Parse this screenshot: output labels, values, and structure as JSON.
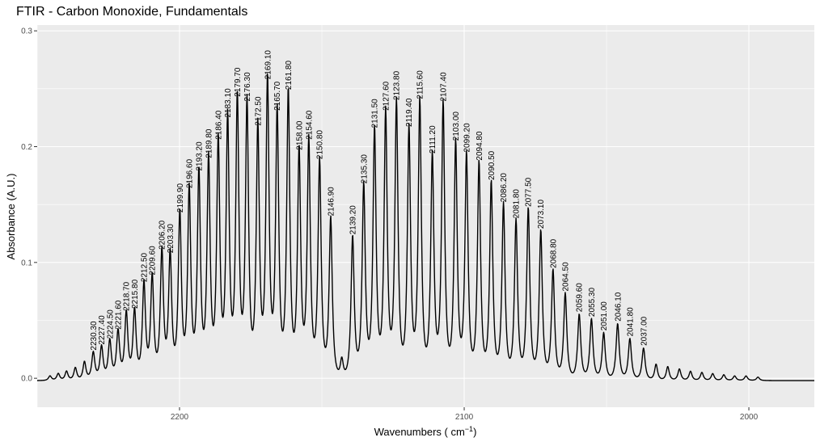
{
  "chart_data": {
    "type": "line",
    "title": "FTIR - Carbon Monoxide, Fundamentals",
    "xlabel_main": "Wavenumbers ( cm",
    "xlabel_sup": "−1",
    "xlabel_close": ")",
    "ylabel": "Absorbance (A.U.)",
    "x_reversed": true,
    "xlim": [
      2250,
      1977
    ],
    "ylim": [
      -0.025,
      0.305
    ],
    "x_ticks": [
      2200,
      2100,
      2000
    ],
    "y_ticks": [
      0.0,
      0.1,
      0.2,
      0.3
    ],
    "y_tick_labels": [
      "0.0",
      "0.1",
      "0.2",
      "0.3"
    ],
    "x_tick_labels": [
      "2200",
      "2100",
      "2000"
    ],
    "grid": true,
    "legend": "none",
    "colors": {
      "panel": "#ebebeb",
      "line": "#000000",
      "grid": "#ffffff"
    },
    "baseline": -0.002,
    "peaks": [
      {
        "label": "2230.30",
        "x": 2230.3,
        "y": 0.022
      },
      {
        "label": "2227.40",
        "x": 2227.4,
        "y": 0.027
      },
      {
        "label": "2224.50",
        "x": 2224.5,
        "y": 0.032
      },
      {
        "label": "2221.60",
        "x": 2221.6,
        "y": 0.04
      },
      {
        "label": "2218.70",
        "x": 2218.7,
        "y": 0.056
      },
      {
        "label": "2215.80",
        "x": 2215.8,
        "y": 0.058
      },
      {
        "label": "2212.50",
        "x": 2212.5,
        "y": 0.081
      },
      {
        "label": "2209.60",
        "x": 2209.6,
        "y": 0.087
      },
      {
        "label": "2206.20",
        "x": 2206.2,
        "y": 0.109
      },
      {
        "label": "2203.30",
        "x": 2203.3,
        "y": 0.106
      },
      {
        "label": "2199.90",
        "x": 2199.9,
        "y": 0.141
      },
      {
        "label": "2196.60",
        "x": 2196.6,
        "y": 0.162
      },
      {
        "label": "2193.20",
        "x": 2193.2,
        "y": 0.177
      },
      {
        "label": "2189.80",
        "x": 2189.8,
        "y": 0.188
      },
      {
        "label": "2186.40",
        "x": 2186.4,
        "y": 0.204
      },
      {
        "label": "2183.10",
        "x": 2183.1,
        "y": 0.223
      },
      {
        "label": "2179.70",
        "x": 2179.7,
        "y": 0.241
      },
      {
        "label": "2176.30",
        "x": 2176.3,
        "y": 0.237
      },
      {
        "label": "2172.50",
        "x": 2172.5,
        "y": 0.216
      },
      {
        "label": "2169.10",
        "x": 2169.1,
        "y": 0.256
      },
      {
        "label": "2165.70",
        "x": 2165.7,
        "y": 0.229
      },
      {
        "label": "2161.80",
        "x": 2161.8,
        "y": 0.247
      },
      {
        "label": "2158.00",
        "x": 2158.0,
        "y": 0.195
      },
      {
        "label": "2154.60",
        "x": 2154.6,
        "y": 0.204
      },
      {
        "label": "2150.80",
        "x": 2150.8,
        "y": 0.187
      },
      {
        "label": "2146.90",
        "x": 2146.9,
        "y": 0.138
      },
      {
        "label": "2139.20",
        "x": 2139.2,
        "y": 0.122
      },
      {
        "label": "2135.30",
        "x": 2135.3,
        "y": 0.166
      },
      {
        "label": "2131.50",
        "x": 2131.5,
        "y": 0.214
      },
      {
        "label": "2127.60",
        "x": 2127.6,
        "y": 0.229
      },
      {
        "label": "2123.80",
        "x": 2123.8,
        "y": 0.238
      },
      {
        "label": "2119.40",
        "x": 2119.4,
        "y": 0.215
      },
      {
        "label": "2115.60",
        "x": 2115.6,
        "y": 0.239
      },
      {
        "label": "2111.20",
        "x": 2111.2,
        "y": 0.192
      },
      {
        "label": "2107.40",
        "x": 2107.4,
        "y": 0.237
      },
      {
        "label": "2103.00",
        "x": 2103.0,
        "y": 0.203
      },
      {
        "label": "2099.20",
        "x": 2099.2,
        "y": 0.193
      },
      {
        "label": "2094.80",
        "x": 2094.8,
        "y": 0.186
      },
      {
        "label": "2090.50",
        "x": 2090.5,
        "y": 0.169
      },
      {
        "label": "2086.20",
        "x": 2086.2,
        "y": 0.15
      },
      {
        "label": "2081.80",
        "x": 2081.8,
        "y": 0.136
      },
      {
        "label": "2077.50",
        "x": 2077.5,
        "y": 0.146
      },
      {
        "label": "2073.10",
        "x": 2073.1,
        "y": 0.127
      },
      {
        "label": "2068.80",
        "x": 2068.8,
        "y": 0.093
      },
      {
        "label": "2064.50",
        "x": 2064.5,
        "y": 0.073
      },
      {
        "label": "2059.60",
        "x": 2059.6,
        "y": 0.055
      },
      {
        "label": "2055.30",
        "x": 2055.3,
        "y": 0.051
      },
      {
        "label": "2051.00",
        "x": 2051.0,
        "y": 0.039
      },
      {
        "label": "2046.10",
        "x": 2046.1,
        "y": 0.047
      },
      {
        "label": "2041.80",
        "x": 2041.8,
        "y": 0.034
      },
      {
        "label": "2037.00",
        "x": 2037.0,
        "y": 0.026
      }
    ],
    "minor_peaks": [
      {
        "x": 2245.5,
        "y": 0.002
      },
      {
        "x": 2242.6,
        "y": 0.004
      },
      {
        "x": 2239.7,
        "y": 0.006
      },
      {
        "x": 2236.6,
        "y": 0.009
      },
      {
        "x": 2233.4,
        "y": 0.014
      },
      {
        "x": 2143.0,
        "y": 0.015
      },
      {
        "x": 2032.6,
        "y": 0.012
      },
      {
        "x": 2028.5,
        "y": 0.01
      },
      {
        "x": 2024.4,
        "y": 0.008
      },
      {
        "x": 2020.5,
        "y": 0.006
      },
      {
        "x": 2016.5,
        "y": 0.005
      },
      {
        "x": 2012.7,
        "y": 0.004
      },
      {
        "x": 2008.8,
        "y": 0.003
      },
      {
        "x": 2005.0,
        "y": 0.002
      },
      {
        "x": 2001.0,
        "y": 0.002
      },
      {
        "x": 1996.8,
        "y": 0.001
      }
    ]
  }
}
